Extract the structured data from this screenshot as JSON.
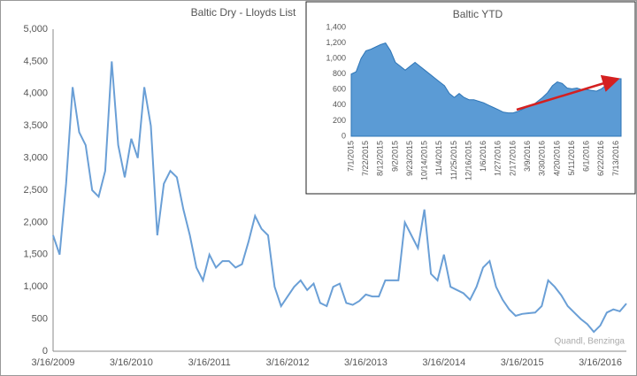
{
  "chart_data": [
    {
      "type": "line",
      "title": "Baltic Dry - Lloyds List",
      "source": "Quandl, Benzinga",
      "color": "#6a9fd6",
      "categories": [
        "3/16/2009",
        null,
        null,
        null,
        null,
        null,
        null,
        null,
        null,
        null,
        null,
        null,
        "3/16/2010",
        null,
        null,
        null,
        null,
        null,
        null,
        null,
        null,
        null,
        null,
        null,
        "3/16/2011",
        null,
        null,
        null,
        null,
        null,
        null,
        null,
        null,
        null,
        null,
        null,
        "3/16/2012",
        null,
        null,
        null,
        null,
        null,
        null,
        null,
        null,
        null,
        null,
        null,
        "3/16/2013",
        null,
        null,
        null,
        null,
        null,
        null,
        null,
        null,
        null,
        null,
        null,
        "3/16/2014",
        null,
        null,
        null,
        null,
        null,
        null,
        null,
        null,
        null,
        null,
        null,
        "3/16/2015",
        null,
        null,
        null,
        null,
        null,
        null,
        null,
        null,
        null,
        null,
        null,
        "3/16/2016",
        null,
        null,
        null,
        null
      ],
      "values": [
        1800,
        1500,
        2600,
        4100,
        3400,
        3200,
        2500,
        2400,
        2800,
        4500,
        3200,
        2700,
        3300,
        3000,
        4100,
        3500,
        1800,
        2600,
        2800,
        2700,
        2200,
        1800,
        1300,
        1100,
        1500,
        1300,
        1400,
        1400,
        1300,
        1350,
        1700,
        2100,
        1900,
        1800,
        1000,
        700,
        850,
        1000,
        1100,
        950,
        1050,
        750,
        700,
        1000,
        1050,
        750,
        720,
        780,
        880,
        850,
        850,
        1100,
        1100,
        1100,
        2000,
        1800,
        1600,
        2200,
        1200,
        1100,
        1500,
        1000,
        950,
        900,
        800,
        1000,
        1300,
        1400,
        1000,
        800,
        650,
        550,
        580,
        590,
        600,
        700,
        1100,
        1000,
        870,
        700,
        600,
        500,
        420,
        300,
        400,
        600,
        650,
        620,
        740
      ],
      "ylim": [
        0,
        5000
      ],
      "yticks": [
        0,
        500,
        {
          "value": 1000,
          "label": "1,000"
        },
        {
          "value": 1500,
          "label": "1,500"
        },
        {
          "value": 2000,
          "label": "2,000"
        },
        {
          "value": 2500,
          "label": "2,500"
        },
        {
          "value": 3000,
          "label": "3,000"
        },
        {
          "value": 3500,
          "label": "3,500"
        },
        {
          "value": 4000,
          "label": "4,000"
        },
        {
          "value": 4500,
          "label": "4,500"
        },
        {
          "value": 5000,
          "label": "5,000"
        }
      ],
      "grid": false
    },
    {
      "type": "area",
      "title": "Baltic YTD",
      "color": "#5b9bd5",
      "categories": [
        "7/1/2015",
        null,
        null,
        "7/22/2015",
        null,
        null,
        "8/12/2015",
        null,
        null,
        "9/2/2015",
        null,
        null,
        "9/23/2015",
        null,
        null,
        "10/14/2015",
        null,
        null,
        "11/4/2015",
        null,
        null,
        "11/25/2015",
        null,
        null,
        "12/16/2015",
        null,
        null,
        "1/6/2016",
        null,
        null,
        "1/27/2016",
        null,
        null,
        "2/17/2016",
        null,
        null,
        "3/9/2016",
        null,
        null,
        "3/30/2016",
        null,
        null,
        "4/20/2016",
        null,
        null,
        "5/11/2016",
        null,
        null,
        "6/1/2016",
        null,
        null,
        "6/22/2016",
        null,
        null,
        "7/13/2016",
        null
      ],
      "values": [
        800,
        830,
        1000,
        1100,
        1120,
        1150,
        1180,
        1200,
        1100,
        950,
        900,
        850,
        900,
        950,
        900,
        850,
        800,
        750,
        700,
        650,
        550,
        500,
        550,
        500,
        470,
        470,
        450,
        430,
        400,
        370,
        340,
        310,
        300,
        300,
        320,
        350,
        380,
        400,
        450,
        500,
        560,
        650,
        700,
        680,
        620,
        610,
        620,
        600,
        600,
        590,
        580,
        610,
        660,
        700,
        740,
        740
      ],
      "ylim": [
        0,
        1400
      ],
      "yticks": [
        0,
        200,
        400,
        600,
        800,
        {
          "value": 1000,
          "label": "1,000"
        },
        {
          "value": 1200,
          "label": "1,200"
        },
        {
          "value": 1400,
          "label": "1,400"
        }
      ],
      "grid": false
    }
  ]
}
